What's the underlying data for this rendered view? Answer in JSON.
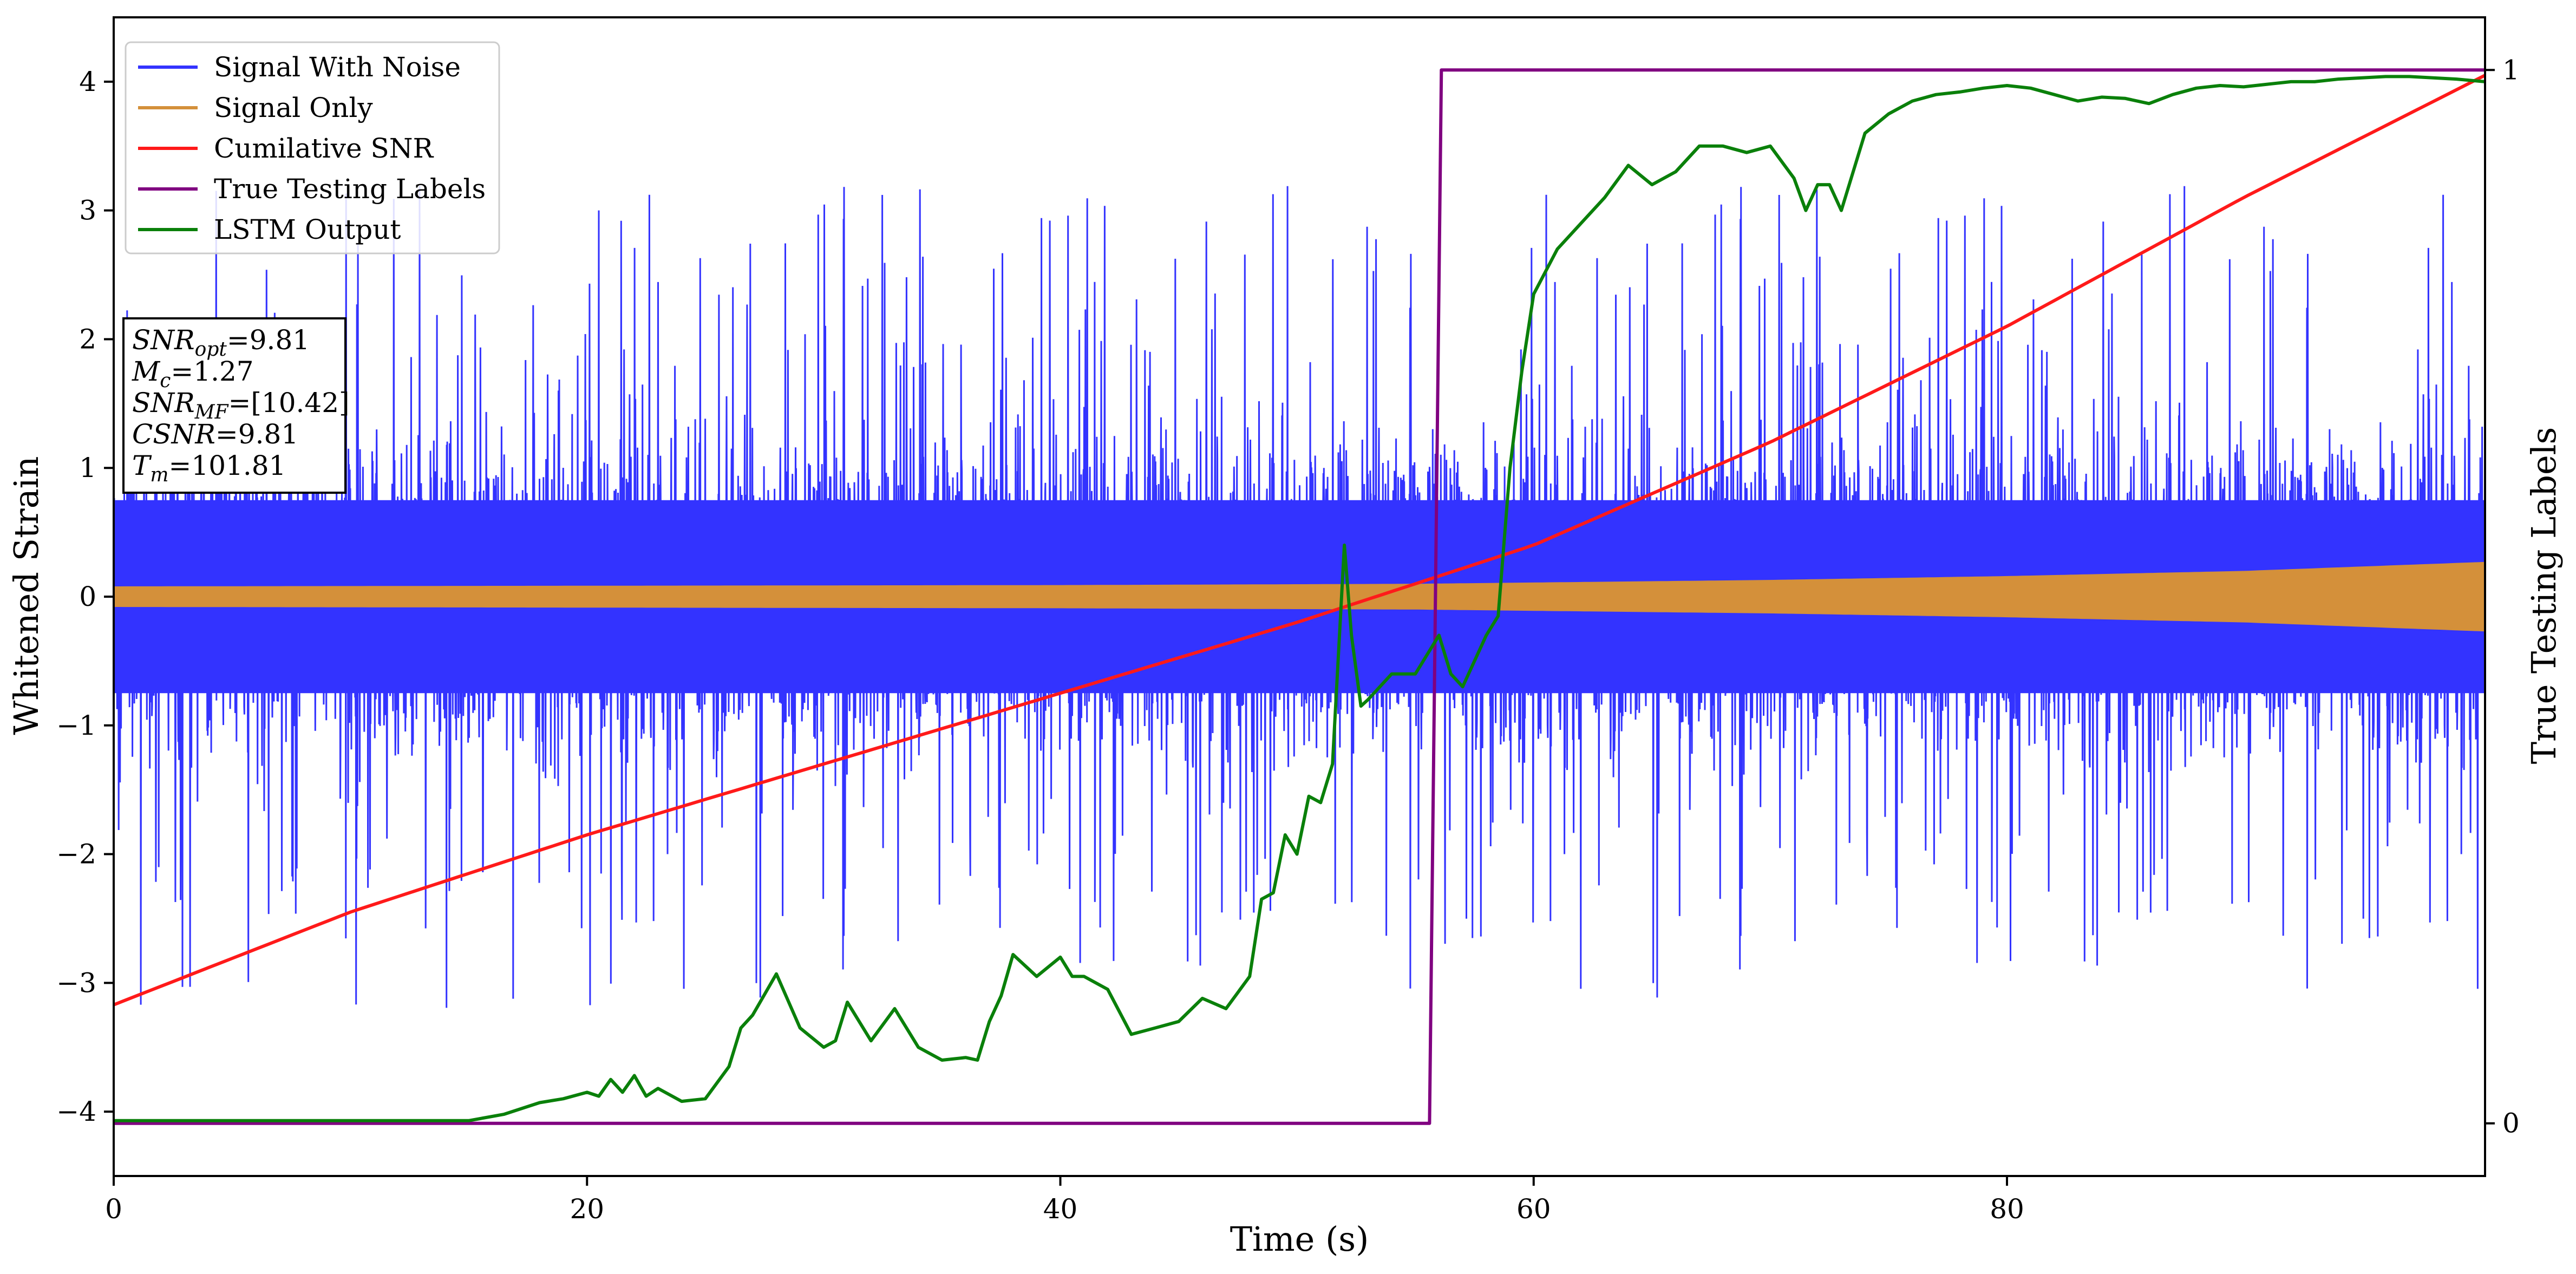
{
  "chart_data": {
    "type": "line",
    "title": "",
    "xlabel": "Time (s)",
    "ylabel": "Whitened Strain",
    "y2label": "True Testing Labels",
    "xlim": [
      0,
      100.2
    ],
    "ylim": [
      -4.5,
      4.5
    ],
    "y2lim": [
      -0.05,
      1.05
    ],
    "xticks": [
      0,
      20,
      40,
      60,
      80
    ],
    "yticks": [
      -4,
      -3,
      -2,
      -1,
      0,
      1,
      2,
      3,
      4
    ],
    "y2ticks": [
      0,
      1
    ],
    "grid": false,
    "legend_position": "top-left",
    "legend": [
      "Signal With Noise",
      "Signal Only",
      "Cumilative SNR",
      "True Testing Labels",
      "LSTM Output"
    ],
    "annotation_lines": [
      {
        "var": "SNR",
        "sub": "opt",
        "value": "=9.81"
      },
      {
        "var": "M",
        "sub": "c",
        "value": "=1.27"
      },
      {
        "var": "SNR",
        "sub": "MF",
        "value": "=[10.42]"
      },
      {
        "var": "CSNR",
        "sub": "",
        "value": "=9.81"
      },
      {
        "var": "T",
        "sub": "m",
        "value": "=101.81"
      }
    ],
    "series": [
      {
        "name": "Signal With Noise",
        "color": "#3333ff",
        "axis": "left",
        "kind": "noise",
        "description_envelope": {
          "x_range": [
            0,
            100.2
          ],
          "typical_min": -1.6,
          "typical_max": 1.6,
          "peak_min": -3.65,
          "peak_max": 4.05
        }
      },
      {
        "name": "Signal Only",
        "color": "#d4903a",
        "axis": "left",
        "kind": "envelope",
        "x": [
          0,
          20,
          40,
          55,
          60,
          70,
          80,
          90,
          100.2
        ],
        "amplitude": [
          0.08,
          0.085,
          0.09,
          0.1,
          0.11,
          0.13,
          0.16,
          0.2,
          0.27
        ]
      },
      {
        "name": "Cumilative SNR",
        "color": "#ff1a1a",
        "axis": "left",
        "x": [
          0,
          10,
          20,
          30,
          40,
          50,
          55,
          60,
          70,
          80,
          90,
          100.2
        ],
        "values": [
          -3.17,
          -2.45,
          -1.85,
          -1.3,
          -0.75,
          -0.2,
          0.1,
          0.4,
          1.2,
          2.1,
          3.1,
          4.05
        ]
      },
      {
        "name": "True Testing Labels",
        "color": "#800080",
        "axis": "right",
        "x": [
          0,
          55.6,
          56.1,
          100.2
        ],
        "values": [
          0,
          0,
          1,
          1
        ]
      },
      {
        "name": "LSTM Output",
        "color": "#0a800a",
        "axis": "left",
        "x": [
          0,
          15,
          16.5,
          18,
          19,
          20,
          20.5,
          21,
          21.5,
          22,
          22.5,
          23,
          24,
          25,
          26,
          26.5,
          27,
          28,
          29,
          30,
          30.5,
          31,
          32,
          33,
          34,
          35,
          36,
          36.5,
          37,
          37.5,
          38,
          39,
          40,
          40.5,
          41,
          42,
          43,
          44,
          45,
          46,
          47,
          48,
          48.5,
          49,
          49.5,
          50,
          50.5,
          51,
          51.5,
          52,
          52.3,
          52.7,
          53,
          54,
          55,
          56,
          56.5,
          57,
          58,
          58.5,
          59,
          59.5,
          60,
          61,
          62,
          63,
          64,
          65,
          66,
          67,
          68,
          69,
          70,
          71,
          71.5,
          72,
          72.5,
          73,
          74,
          75,
          76,
          77,
          78,
          79,
          80,
          81,
          82,
          83,
          84,
          85,
          86,
          87,
          88,
          89,
          90,
          91,
          92,
          93,
          94,
          95,
          96,
          97,
          98,
          99,
          100.2
        ],
        "values": [
          -4.07,
          -4.07,
          -4.02,
          -3.93,
          -3.9,
          -3.85,
          -3.88,
          -3.75,
          -3.85,
          -3.72,
          -3.88,
          -3.82,
          -3.92,
          -3.9,
          -3.65,
          -3.35,
          -3.25,
          -2.93,
          -3.35,
          -3.5,
          -3.45,
          -3.15,
          -3.45,
          -3.2,
          -3.5,
          -3.6,
          -3.58,
          -3.6,
          -3.3,
          -3.1,
          -2.78,
          -2.95,
          -2.8,
          -2.95,
          -2.95,
          -3.05,
          -3.4,
          -3.35,
          -3.3,
          -3.12,
          -3.2,
          -2.95,
          -2.35,
          -2.3,
          -1.85,
          -2.0,
          -1.55,
          -1.6,
          -1.3,
          0.4,
          -0.3,
          -0.85,
          -0.8,
          -0.6,
          -0.6,
          -0.3,
          -0.6,
          -0.7,
          -0.3,
          -0.15,
          1.0,
          1.75,
          2.35,
          2.7,
          2.9,
          3.1,
          3.35,
          3.2,
          3.3,
          3.5,
          3.5,
          3.45,
          3.5,
          3.25,
          3.0,
          3.2,
          3.2,
          3.0,
          3.6,
          3.75,
          3.85,
          3.9,
          3.92,
          3.95,
          3.97,
          3.95,
          3.9,
          3.85,
          3.88,
          3.87,
          3.83,
          3.9,
          3.95,
          3.97,
          3.96,
          3.98,
          4.0,
          4.0,
          4.02,
          4.03,
          4.04,
          4.04,
          4.03,
          4.02,
          4.0
        ]
      }
    ]
  }
}
